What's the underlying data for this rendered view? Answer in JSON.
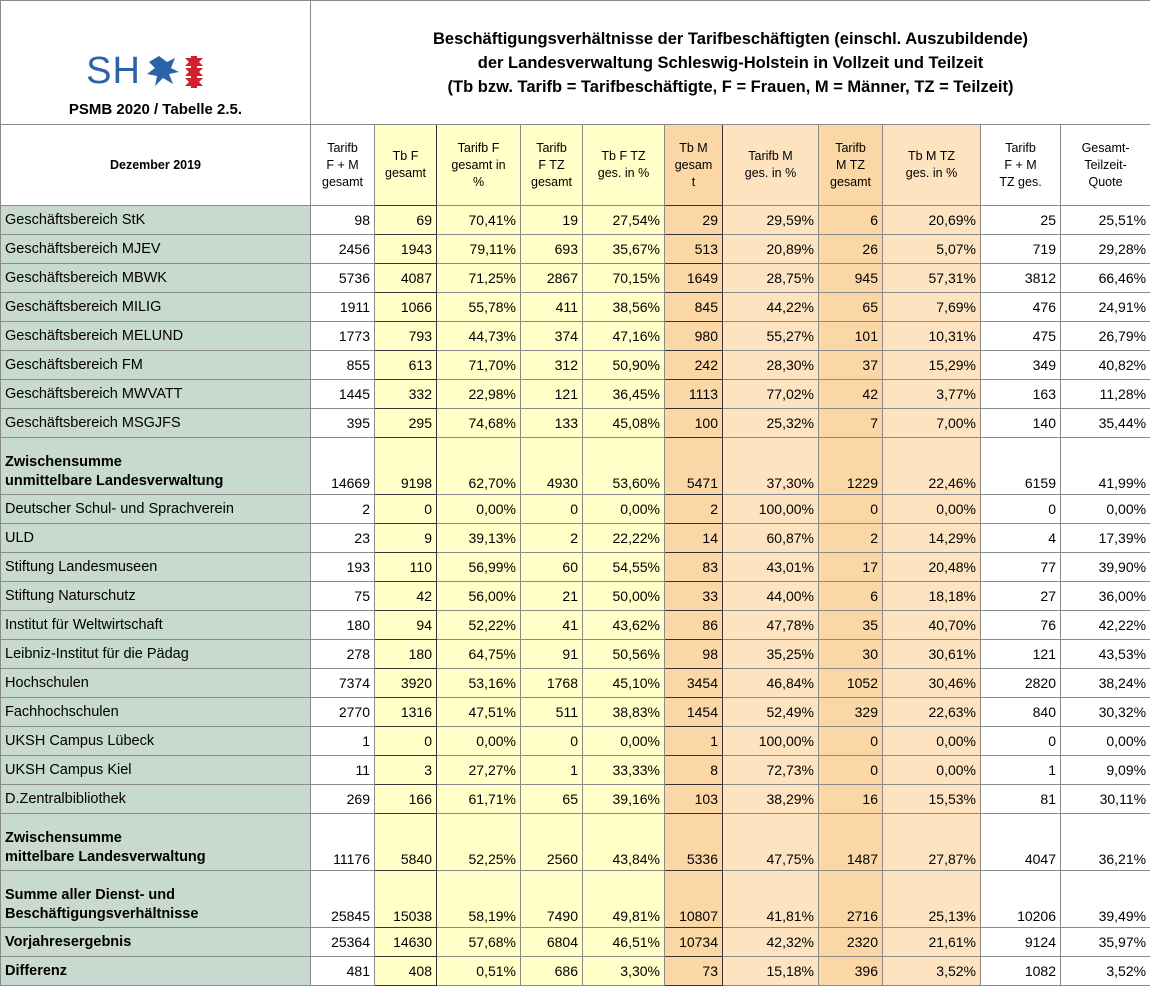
{
  "header": {
    "logo_text": "SH",
    "subtitle": "PSMB 2020 / Tabelle 2.5.",
    "title_lines": [
      "Beschäftigungsverhältnisse der Tarifbeschäftigten (einschl. Auszubildende)",
      "der Landesverwaltung Schleswig-Holstein in Vollzeit und Teilzeit",
      "(Tb bzw. Tarifb = Tarifbeschäftigte, F = Frauen, M = Männer, TZ = Teilzeit)"
    ]
  },
  "table": {
    "corner": "Dezember 2019",
    "columns": [
      [
        "Tarifb",
        "F + M",
        "gesamt"
      ],
      [
        "Tb F",
        "gesamt"
      ],
      [
        "Tarifb F",
        "gesamt in",
        "%"
      ],
      [
        "Tarifb",
        "F TZ",
        "gesamt"
      ],
      [
        "Tb F TZ",
        "ges. in %"
      ],
      [
        "Tb M",
        "gesam",
        "t"
      ],
      [
        "Tarifb M",
        "ges. in %"
      ],
      [
        "Tarifb",
        "M TZ",
        "gesamt"
      ],
      [
        "Tb M TZ",
        "ges. in %"
      ],
      [
        "Tarifb",
        "F + M",
        "TZ ges."
      ],
      [
        "Gesamt-",
        "Teilzeit-",
        "Quote"
      ]
    ],
    "rows": [
      {
        "label": [
          "Geschäftsbereich StK"
        ],
        "cells": [
          "98",
          "69",
          "70,41%",
          "19",
          "27,54%",
          "29",
          "29,59%",
          "6",
          "20,69%",
          "25",
          "25,51%"
        ]
      },
      {
        "label": [
          "Geschäftsbereich MJEV"
        ],
        "cells": [
          "2456",
          "1943",
          "79,11%",
          "693",
          "35,67%",
          "513",
          "20,89%",
          "26",
          "5,07%",
          "719",
          "29,28%"
        ]
      },
      {
        "label": [
          "Geschäftsbereich MBWK"
        ],
        "cells": [
          "5736",
          "4087",
          "71,25%",
          "2867",
          "70,15%",
          "1649",
          "28,75%",
          "945",
          "57,31%",
          "3812",
          "66,46%"
        ]
      },
      {
        "label": [
          "Geschäftsbereich MILIG"
        ],
        "cells": [
          "1911",
          "1066",
          "55,78%",
          "411",
          "38,56%",
          "845",
          "44,22%",
          "65",
          "7,69%",
          "476",
          "24,91%"
        ]
      },
      {
        "label": [
          "Geschäftsbereich MELUND"
        ],
        "cells": [
          "1773",
          "793",
          "44,73%",
          "374",
          "47,16%",
          "980",
          "55,27%",
          "101",
          "10,31%",
          "475",
          "26,79%"
        ]
      },
      {
        "label": [
          "Geschäftsbereich FM"
        ],
        "cells": [
          "855",
          "613",
          "71,70%",
          "312",
          "50,90%",
          "242",
          "28,30%",
          "37",
          "15,29%",
          "349",
          "40,82%"
        ]
      },
      {
        "label": [
          "Geschäftsbereich MWVATT"
        ],
        "cells": [
          "1445",
          "332",
          "22,98%",
          "121",
          "36,45%",
          "1113",
          "77,02%",
          "42",
          "3,77%",
          "163",
          "11,28%"
        ]
      },
      {
        "label": [
          "Geschäftsbereich MSGJFS"
        ],
        "cells": [
          "395",
          "295",
          "74,68%",
          "133",
          "45,08%",
          "100",
          "25,32%",
          "7",
          "7,00%",
          "140",
          "35,44%"
        ]
      },
      {
        "label": [
          "Zwischensumme",
          "unmittelbare Landesverwaltung"
        ],
        "bold": true,
        "cells": [
          "14669",
          "9198",
          "62,70%",
          "4930",
          "53,60%",
          "5471",
          "37,30%",
          "1229",
          "22,46%",
          "6159",
          "41,99%"
        ]
      },
      {
        "label": [
          "Deutscher Schul- und Sprachverein"
        ],
        "cells": [
          "2",
          "0",
          "0,00%",
          "0",
          "0,00%",
          "2",
          "100,00%",
          "0",
          "0,00%",
          "0",
          "0,00%"
        ]
      },
      {
        "label": [
          "ULD"
        ],
        "cells": [
          "23",
          "9",
          "39,13%",
          "2",
          "22,22%",
          "14",
          "60,87%",
          "2",
          "14,29%",
          "4",
          "17,39%"
        ]
      },
      {
        "label": [
          "Stiftung Landesmuseen"
        ],
        "cells": [
          "193",
          "110",
          "56,99%",
          "60",
          "54,55%",
          "83",
          "43,01%",
          "17",
          "20,48%",
          "77",
          "39,90%"
        ]
      },
      {
        "label": [
          "Stiftung Naturschutz"
        ],
        "cells": [
          "75",
          "42",
          "56,00%",
          "21",
          "50,00%",
          "33",
          "44,00%",
          "6",
          "18,18%",
          "27",
          "36,00%"
        ]
      },
      {
        "label": [
          "Institut für Weltwirtschaft"
        ],
        "cells": [
          "180",
          "94",
          "52,22%",
          "41",
          "43,62%",
          "86",
          "47,78%",
          "35",
          "40,70%",
          "76",
          "42,22%"
        ]
      },
      {
        "label": [
          "Leibniz-Institut für die Pädag"
        ],
        "cells": [
          "278",
          "180",
          "64,75%",
          "91",
          "50,56%",
          "98",
          "35,25%",
          "30",
          "30,61%",
          "121",
          "43,53%"
        ]
      },
      {
        "label": [
          "Hochschulen"
        ],
        "cells": [
          "7374",
          "3920",
          "53,16%",
          "1768",
          "45,10%",
          "3454",
          "46,84%",
          "1052",
          "30,46%",
          "2820",
          "38,24%"
        ]
      },
      {
        "label": [
          "Fachhochschulen"
        ],
        "cells": [
          "2770",
          "1316",
          "47,51%",
          "511",
          "38,83%",
          "1454",
          "52,49%",
          "329",
          "22,63%",
          "840",
          "30,32%"
        ]
      },
      {
        "label": [
          "UKSH Campus Lübeck"
        ],
        "cells": [
          "1",
          "0",
          "0,00%",
          "0",
          "0,00%",
          "1",
          "100,00%",
          "0",
          "0,00%",
          "0",
          "0,00%"
        ]
      },
      {
        "label": [
          "UKSH Campus Kiel"
        ],
        "cells": [
          "11",
          "3",
          "27,27%",
          "1",
          "33,33%",
          "8",
          "72,73%",
          "0",
          "0,00%",
          "1",
          "9,09%"
        ]
      },
      {
        "label": [
          "D.Zentralbibliothek"
        ],
        "cells": [
          "269",
          "166",
          "61,71%",
          "65",
          "39,16%",
          "103",
          "38,29%",
          "16",
          "15,53%",
          "81",
          "30,11%"
        ]
      },
      {
        "label": [
          "Zwischensumme",
          "mittelbare Landesverwaltung"
        ],
        "bold": true,
        "cells": [
          "11176",
          "5840",
          "52,25%",
          "2560",
          "43,84%",
          "5336",
          "47,75%",
          "1487",
          "27,87%",
          "4047",
          "36,21%"
        ]
      },
      {
        "label": [
          "Summe aller Dienst- und",
          "Beschäftigungsverhältnisse"
        ],
        "bold": true,
        "cells": [
          "25845",
          "15038",
          "58,19%",
          "7490",
          "49,81%",
          "10807",
          "41,81%",
          "2716",
          "25,13%",
          "10206",
          "39,49%"
        ]
      },
      {
        "label": [
          "Vorjahresergebnis"
        ],
        "bold": true,
        "cells": [
          "25364",
          "14630",
          "57,68%",
          "6804",
          "46,51%",
          "10734",
          "42,32%",
          "2320",
          "21,61%",
          "9124",
          "35,97%"
        ]
      },
      {
        "label": [
          "Differenz"
        ],
        "bold": true,
        "cells": [
          "481",
          "408",
          "0,51%",
          "686",
          "3,30%",
          "73",
          "15,18%",
          "396",
          "3,52%",
          "1082",
          "3,52%"
        ]
      }
    ]
  }
}
